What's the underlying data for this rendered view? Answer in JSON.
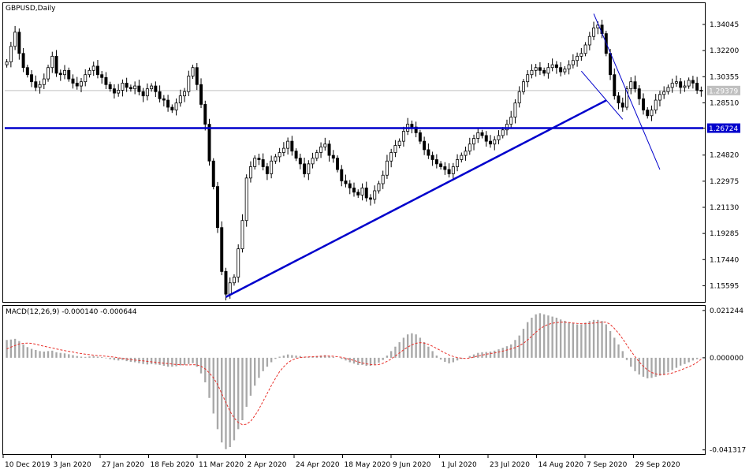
{
  "chart_data": [
    {
      "type": "candlestick",
      "symbol_label": "GBPUSD,Daily",
      "ylim": [
        1.1445,
        1.3555
      ],
      "y_ticks": [
        "1.34045",
        "1.32200",
        "1.30355",
        "1.28510",
        "1.26724",
        "1.24820",
        "1.22975",
        "1.21130",
        "1.19285",
        "1.17440",
        "1.15595"
      ],
      "x_labels": [
        "10 Dec 2019",
        "3 Jan 2020",
        "27 Jan 2020",
        "18 Feb 2020",
        "11 Mar 2020",
        "2 Apr 2020",
        "24 Apr 2020",
        "18 May 2020",
        "9 Jun 2020",
        "1 Jul 2020",
        "23 Jul 2020",
        "14 Aug 2020",
        "7 Sep 2020",
        "29 Sep 2020"
      ],
      "current_price_label": "1.29379",
      "current_price": 1.29379,
      "horizontal_level_label": "1.26724",
      "horizontal_level": 1.26724,
      "close_series": [
        1.314,
        1.325,
        1.335,
        1.32,
        1.31,
        1.305,
        1.3,
        1.296,
        1.298,
        1.302,
        1.31,
        1.318,
        1.306,
        1.305,
        1.308,
        1.302,
        1.299,
        1.297,
        1.3,
        1.305,
        1.308,
        1.311,
        1.305,
        1.303,
        1.298,
        1.295,
        1.292,
        1.294,
        1.299,
        1.296,
        1.295,
        1.297,
        1.293,
        1.29,
        1.295,
        1.297,
        1.293,
        1.288,
        1.287,
        1.282,
        1.28,
        1.285,
        1.29,
        1.293,
        1.304,
        1.31,
        1.298,
        1.284,
        1.27,
        1.244,
        1.226,
        1.197,
        1.166,
        1.15,
        1.158,
        1.162,
        1.182,
        1.202,
        1.232,
        1.24,
        1.246,
        1.245,
        1.24,
        1.235,
        1.244,
        1.247,
        1.25,
        1.253,
        1.258,
        1.251,
        1.246,
        1.242,
        1.235,
        1.242,
        1.246,
        1.25,
        1.254,
        1.256,
        1.248,
        1.246,
        1.238,
        1.23,
        1.228,
        1.225,
        1.222,
        1.22,
        1.225,
        1.218,
        1.217,
        1.223,
        1.228,
        1.234,
        1.244,
        1.25,
        1.255,
        1.258,
        1.265,
        1.27,
        1.268,
        1.264,
        1.258,
        1.252,
        1.248,
        1.245,
        1.242,
        1.24,
        1.238,
        1.235,
        1.24,
        1.245,
        1.248,
        1.251,
        1.256,
        1.26,
        1.264,
        1.262,
        1.258,
        1.256,
        1.259,
        1.262,
        1.266,
        1.27,
        1.275,
        1.285,
        1.293,
        1.3,
        1.305,
        1.308,
        1.31,
        1.308,
        1.306,
        1.31,
        1.312,
        1.31,
        1.307,
        1.309,
        1.312,
        1.315,
        1.318,
        1.32,
        1.326,
        1.332,
        1.338,
        1.34,
        1.334,
        1.32,
        1.305,
        1.29,
        1.285,
        1.282,
        1.295,
        1.3,
        1.295,
        1.288,
        1.28,
        1.276,
        1.28,
        1.287,
        1.291,
        1.293,
        1.296,
        1.299,
        1.3,
        1.296,
        1.297,
        1.301,
        1.299,
        1.294,
        1.2938
      ]
    },
    {
      "type": "bar+line",
      "indicator_label": "MACD(12,26,9) -0.000140 -0.000644",
      "ylim": [
        -0.0432,
        0.0233
      ],
      "y_ticks": [
        "0.021244",
        "0.000000",
        "-0.041317"
      ],
      "series": [
        {
          "name": "MACD",
          "style": "histogram",
          "color": "#a8a8a8",
          "values": [
            0.008,
            0.0082,
            0.0085,
            0.0075,
            0.006,
            0.0048,
            0.004,
            0.0035,
            0.003,
            0.0028,
            0.003,
            0.0032,
            0.0025,
            0.0022,
            0.002,
            0.0016,
            0.0012,
            0.0008,
            0.0005,
            0.0004,
            0.0006,
            0.0008,
            0.0005,
            0.0003,
            -0.0002,
            -0.0006,
            -0.001,
            -0.0012,
            -0.001,
            -0.0015,
            -0.0018,
            -0.002,
            -0.0024,
            -0.0028,
            -0.003,
            -0.0028,
            -0.003,
            -0.0032,
            -0.0036,
            -0.004,
            -0.004,
            -0.0038,
            -0.0034,
            -0.0032,
            -0.0028,
            -0.0024,
            -0.004,
            -0.007,
            -0.011,
            -0.018,
            -0.025,
            -0.032,
            -0.038,
            -0.041,
            -0.04,
            -0.037,
            -0.032,
            -0.028,
            -0.022,
            -0.017,
            -0.0125,
            -0.009,
            -0.006,
            -0.004,
            -0.002,
            -0.0005,
            0.0005,
            0.001,
            0.0015,
            0.0012,
            0.001,
            0.0008,
            0.0004,
            0.0004,
            0.0006,
            0.0008,
            0.001,
            0.0012,
            0.0008,
            0.0004,
            0.0,
            -0.0005,
            -0.0012,
            -0.002,
            -0.0026,
            -0.0032,
            -0.0032,
            -0.0036,
            -0.0036,
            -0.003,
            -0.0022,
            -0.001,
            0.001,
            0.003,
            0.005,
            0.007,
            0.009,
            0.0105,
            0.011,
            0.0105,
            0.009,
            0.007,
            0.005,
            0.003,
            0.001,
            -0.0008,
            -0.0018,
            -0.0025,
            -0.002,
            -0.0012,
            -0.0005,
            0.0,
            0.0008,
            0.0015,
            0.0022,
            0.0025,
            0.0026,
            0.0028,
            0.0032,
            0.0038,
            0.0045,
            0.0052,
            0.006,
            0.008,
            0.01,
            0.013,
            0.016,
            0.018,
            0.0195,
            0.02,
            0.0195,
            0.019,
            0.0185,
            0.018,
            0.0172,
            0.0166,
            0.016,
            0.0156,
            0.015,
            0.015,
            0.0158,
            0.0165,
            0.017,
            0.017,
            0.0165,
            0.015,
            0.012,
            0.009,
            0.006,
            0.003,
            -0.001,
            -0.004,
            -0.006,
            -0.0075,
            -0.0085,
            -0.0092,
            -0.009,
            -0.0085,
            -0.008,
            -0.0075,
            -0.0065,
            -0.0055,
            -0.0045,
            -0.0035,
            -0.0028,
            -0.002,
            -0.0012,
            -0.0006,
            -0.0001
          ]
        },
        {
          "name": "Signal",
          "style": "dashed-line",
          "color": "#e8302a",
          "values": [
            0.004,
            0.0048,
            0.0055,
            0.0062,
            0.0065,
            0.0066,
            0.0065,
            0.0061,
            0.0056,
            0.0052,
            0.0048,
            0.0044,
            0.004,
            0.0036,
            0.0032,
            0.0029,
            0.0026,
            0.0022,
            0.0019,
            0.0016,
            0.0014,
            0.0012,
            0.001,
            0.0009,
            0.0007,
            0.0005,
            0.0003,
            0.0,
            -0.0003,
            -0.0005,
            -0.0008,
            -0.001,
            -0.0012,
            -0.0014,
            -0.0016,
            -0.0018,
            -0.002,
            -0.0022,
            -0.0024,
            -0.0026,
            -0.0028,
            -0.003,
            -0.0031,
            -0.0032,
            -0.0032,
            -0.0031,
            -0.0032,
            -0.0038,
            -0.005,
            -0.0068,
            -0.009,
            -0.012,
            -0.016,
            -0.02,
            -0.024,
            -0.027,
            -0.029,
            -0.03,
            -0.0298,
            -0.0285,
            -0.026,
            -0.023,
            -0.0195,
            -0.016,
            -0.0125,
            -0.0092,
            -0.0062,
            -0.004,
            -0.0022,
            -0.001,
            -0.0003,
            0.0001,
            0.0003,
            0.0004,
            0.0005,
            0.0006,
            0.0007,
            0.0008,
            0.0008,
            0.0007,
            0.0005,
            0.0002,
            -0.0002,
            -0.0007,
            -0.0012,
            -0.0018,
            -0.0023,
            -0.0027,
            -0.003,
            -0.0032,
            -0.003,
            -0.0025,
            -0.0016,
            -0.0005,
            0.0008,
            0.0022,
            0.0036,
            0.0048,
            0.0058,
            0.0065,
            0.0068,
            0.0066,
            0.006,
            0.0052,
            0.0042,
            0.0032,
            0.0022,
            0.0013,
            0.0006,
            0.0001,
            -0.0002,
            -0.0003,
            -0.0001,
            0.0003,
            0.0008,
            0.0012,
            0.0016,
            0.0019,
            0.0022,
            0.0026,
            0.003,
            0.0035,
            0.004,
            0.0046,
            0.0054,
            0.0065,
            0.008,
            0.0097,
            0.0115,
            0.013,
            0.0142,
            0.015,
            0.0155,
            0.0158,
            0.016,
            0.016,
            0.0158,
            0.0156,
            0.0154,
            0.0153,
            0.0153,
            0.0154,
            0.0156,
            0.0158,
            0.016,
            0.016,
            0.015,
            0.0132,
            0.011,
            0.0085,
            0.0058,
            0.003,
            0.0005,
            -0.0018,
            -0.0038,
            -0.0055,
            -0.0066,
            -0.0072,
            -0.0075,
            -0.0075,
            -0.0072,
            -0.0068,
            -0.0062,
            -0.0055,
            -0.0048,
            -0.004,
            -0.0032,
            -0.002,
            -0.0006
          ]
        }
      ]
    }
  ],
  "colors": {
    "background": "#ffffff",
    "frame": "#000000",
    "candle": "#000000",
    "trendline": "#0000cc",
    "level_line": "#0000cc",
    "current_price_line": "#c0c0c0",
    "current_price_badge": "#c0c0c0",
    "level_badge": "#0000cc",
    "macd_histogram": "#a8a8a8",
    "macd_signal": "#e8302a"
  }
}
